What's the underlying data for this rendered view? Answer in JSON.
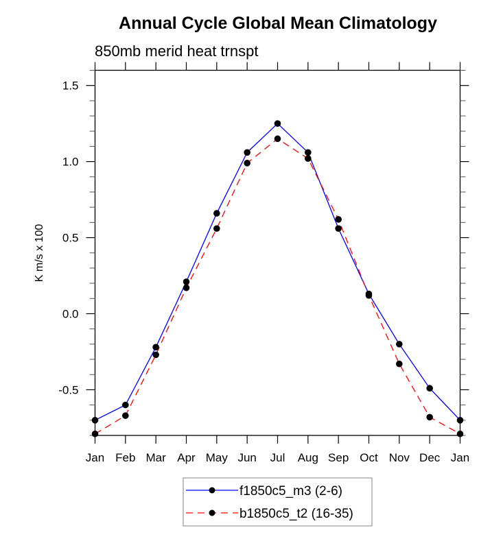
{
  "chart_data": {
    "type": "line",
    "title": "Annual Cycle Global Mean Climatology",
    "subtitle": "850mb merid heat trnspt",
    "xlabel": "",
    "ylabel": "K m/s x 100",
    "x": [
      "Jan",
      "Feb",
      "Mar",
      "Apr",
      "May",
      "Jun",
      "Jul",
      "Aug",
      "Sep",
      "Oct",
      "Nov",
      "Dec",
      "Jan"
    ],
    "ylim": [
      -0.8,
      1.6
    ],
    "yticks": [
      -0.5,
      0.0,
      0.5,
      1.0,
      1.5
    ],
    "ytick_labels": [
      "-0.5",
      "0.0",
      "0.5",
      "1.0",
      "1.5"
    ],
    "y_minor_step": 0.1,
    "grid": false,
    "legend_position": "bottom-center",
    "series": [
      {
        "name": "f1850c5_m3 (2-6)",
        "color": "#0000ff",
        "linestyle": "solid",
        "marker": "filled-circle",
        "values": [
          -0.7,
          -0.6,
          -0.22,
          0.21,
          0.66,
          1.06,
          1.25,
          1.06,
          0.56,
          0.13,
          -0.2,
          -0.49,
          -0.7
        ]
      },
      {
        "name": "b1850c5_t2 (16-35)",
        "color": "#ff0000",
        "linestyle": "dashed",
        "marker": "filled-circle",
        "values": [
          -0.79,
          -0.67,
          -0.27,
          0.17,
          0.56,
          0.99,
          1.15,
          1.02,
          0.62,
          0.12,
          -0.33,
          -0.68,
          -0.79
        ]
      }
    ]
  }
}
